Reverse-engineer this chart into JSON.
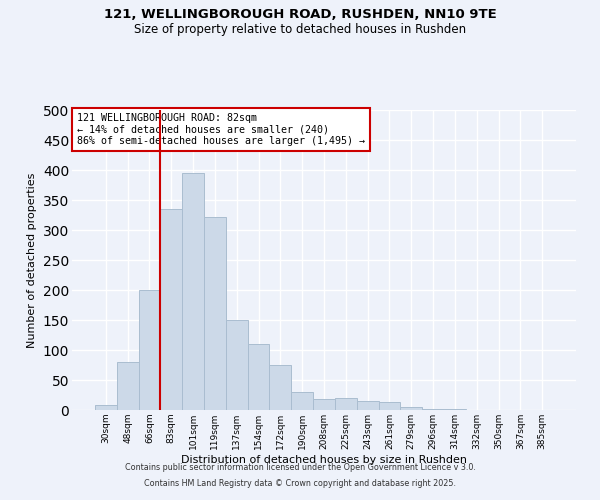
{
  "title1": "121, WELLINGBOROUGH ROAD, RUSHDEN, NN10 9TE",
  "title2": "Size of property relative to detached houses in Rushden",
  "xlabel": "Distribution of detached houses by size in Rushden",
  "ylabel": "Number of detached properties",
  "bar_labels": [
    "30sqm",
    "48sqm",
    "66sqm",
    "83sqm",
    "101sqm",
    "119sqm",
    "137sqm",
    "154sqm",
    "172sqm",
    "190sqm",
    "208sqm",
    "225sqm",
    "243sqm",
    "261sqm",
    "279sqm",
    "296sqm",
    "314sqm",
    "332sqm",
    "350sqm",
    "367sqm",
    "385sqm"
  ],
  "bar_values": [
    8,
    80,
    200,
    335,
    395,
    322,
    150,
    110,
    75,
    30,
    18,
    20,
    15,
    14,
    5,
    2,
    1,
    0,
    0,
    0,
    0
  ],
  "bar_color": "#ccd9e8",
  "bar_edge_color": "#aabdd0",
  "vline_x_index": 3,
  "vline_color": "#cc0000",
  "annotation_text": "121 WELLINGBOROUGH ROAD: 82sqm\n← 14% of detached houses are smaller (240)\n86% of semi-detached houses are larger (1,495) →",
  "annotation_box_color": "#ffffff",
  "annotation_box_edge": "#cc0000",
  "ylim": [
    0,
    500
  ],
  "yticks": [
    0,
    50,
    100,
    150,
    200,
    250,
    300,
    350,
    400,
    450,
    500
  ],
  "footer1": "Contains HM Land Registry data © Crown copyright and database right 2025.",
  "footer2": "Contains public sector information licensed under the Open Government Licence v 3.0.",
  "bg_color": "#eef2fa",
  "grid_color": "#ffffff"
}
